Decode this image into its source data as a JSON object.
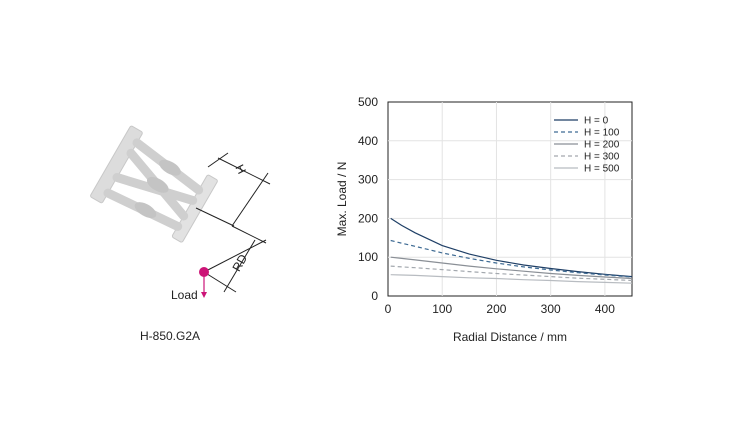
{
  "diagram": {
    "model_label": "H-850.G2A",
    "dim_height_label": "H",
    "dim_radial_label": "RD",
    "load_label": "Load",
    "colors": {
      "load_marker": "#cc1477",
      "hexapod": "#dcdcdc",
      "dimension_lines": "#222222"
    }
  },
  "chart_data": {
    "type": "line",
    "xlabel": "Radial Distance / mm",
    "ylabel": "Max. Load / N",
    "xlim": [
      0,
      450
    ],
    "ylim": [
      0,
      500
    ],
    "xticks": [
      0,
      100,
      200,
      300,
      400
    ],
    "yticks": [
      0,
      100,
      200,
      300,
      400,
      500
    ],
    "grid": true,
    "legend_position": "top-right",
    "x": [
      5,
      25,
      50,
      100,
      150,
      200,
      250,
      300,
      350,
      400,
      450
    ],
    "series": [
      {
        "name": "H = 0",
        "values": [
          200,
          182,
          163,
          130,
          108,
          92,
          80,
          71,
          63,
          56,
          50
        ],
        "color": "#1f3f66",
        "dash": "solid"
      },
      {
        "name": "H = 100",
        "values": [
          143,
          136,
          128,
          111,
          97,
          85,
          75,
          67,
          60,
          54,
          49
        ],
        "color": "#3d6a93",
        "dash": "dashed"
      },
      {
        "name": "H = 200",
        "values": [
          100,
          97,
          93,
          85,
          77,
          70,
          64,
          58,
          53,
          49,
          45
        ],
        "color": "#8a8f96",
        "dash": "solid"
      },
      {
        "name": "H = 300",
        "values": [
          77,
          75,
          73,
          68,
          63,
          58,
          54,
          50,
          46,
          43,
          40
        ],
        "color": "#a3a8ae",
        "dash": "dashed"
      },
      {
        "name": "H = 500",
        "values": [
          55,
          54,
          53,
          50,
          47,
          45,
          42,
          40,
          37,
          35,
          33
        ],
        "color": "#b8bcc1",
        "dash": "solid"
      }
    ]
  }
}
